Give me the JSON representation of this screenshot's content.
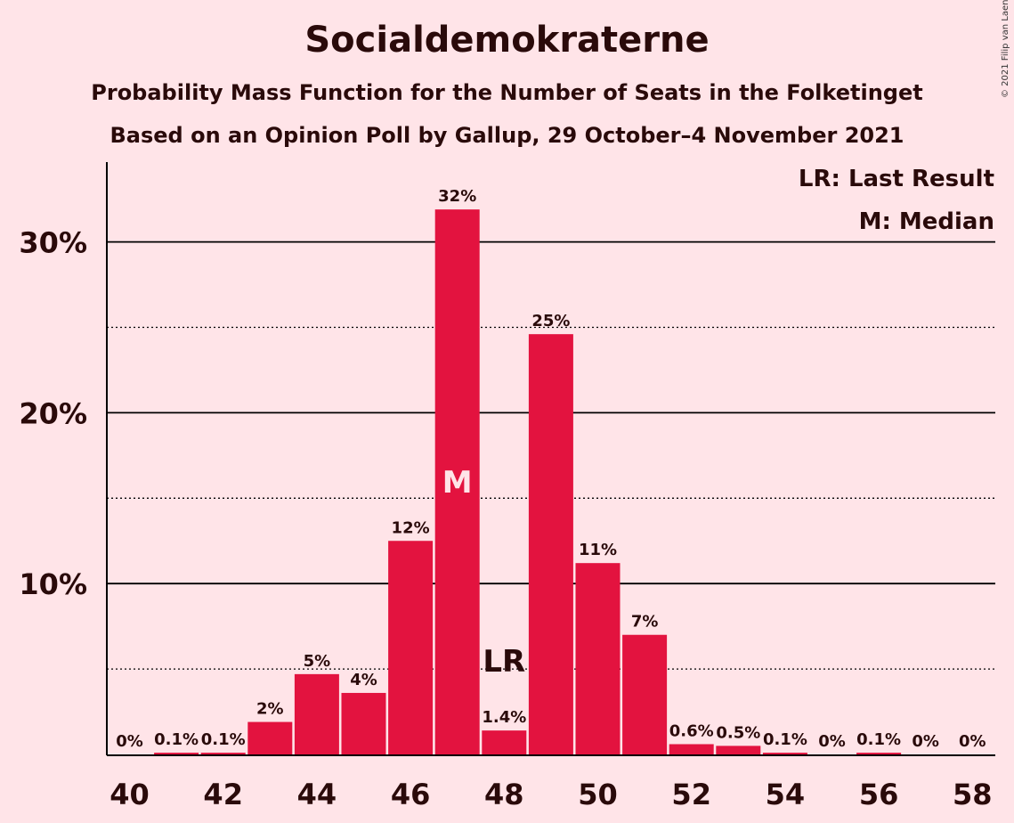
{
  "header": {
    "title": "Socialdemokraterne",
    "subtitle1": "Probability Mass Function for the Number of Seats in the Folketinget",
    "subtitle2": "Based on an Opinion Poll by Gallup, 29 October–4 November 2021",
    "copyright": "© 2021 Filip van Laenen"
  },
  "legend": {
    "last_result": "LR: Last Result",
    "median": "M: Median"
  },
  "colors": {
    "background": "#FFE4E8",
    "bar": "#E3133F",
    "text": "#2A0A0A"
  },
  "chart_data": {
    "type": "bar",
    "x": [
      40,
      41,
      42,
      43,
      44,
      45,
      46,
      47,
      48,
      49,
      50,
      51,
      52,
      53,
      54,
      55,
      56,
      57,
      58
    ],
    "values": [
      0,
      0.1,
      0.1,
      1.9,
      4.7,
      3.6,
      12.5,
      31.9,
      1.4,
      24.6,
      11.2,
      7.0,
      0.6,
      0.5,
      0.1,
      0,
      0.1,
      0,
      0
    ],
    "data_labels": [
      "0%",
      "0.1%",
      "0.1%",
      "2%",
      "5%",
      "4%",
      "12%",
      "32%",
      "1.4%",
      "25%",
      "11%",
      "7%",
      "0.6%",
      "0.5%",
      "0.1%",
      "0%",
      "0.1%",
      "0%",
      "0%"
    ],
    "x_tick_labels": [
      "40",
      "42",
      "44",
      "46",
      "48",
      "50",
      "52",
      "54",
      "56",
      "58"
    ],
    "y_tick_labels": [
      "10%",
      "20%",
      "30%"
    ],
    "y_ticks": [
      10,
      20,
      30
    ],
    "y_minor_ticks": [
      5,
      15,
      25
    ],
    "ylim": [
      0,
      34.6
    ],
    "median_seat": 47,
    "median_marker": "M",
    "last_result_seat": 48,
    "last_result_marker": "LR",
    "grid": "solid major, dotted minor"
  }
}
